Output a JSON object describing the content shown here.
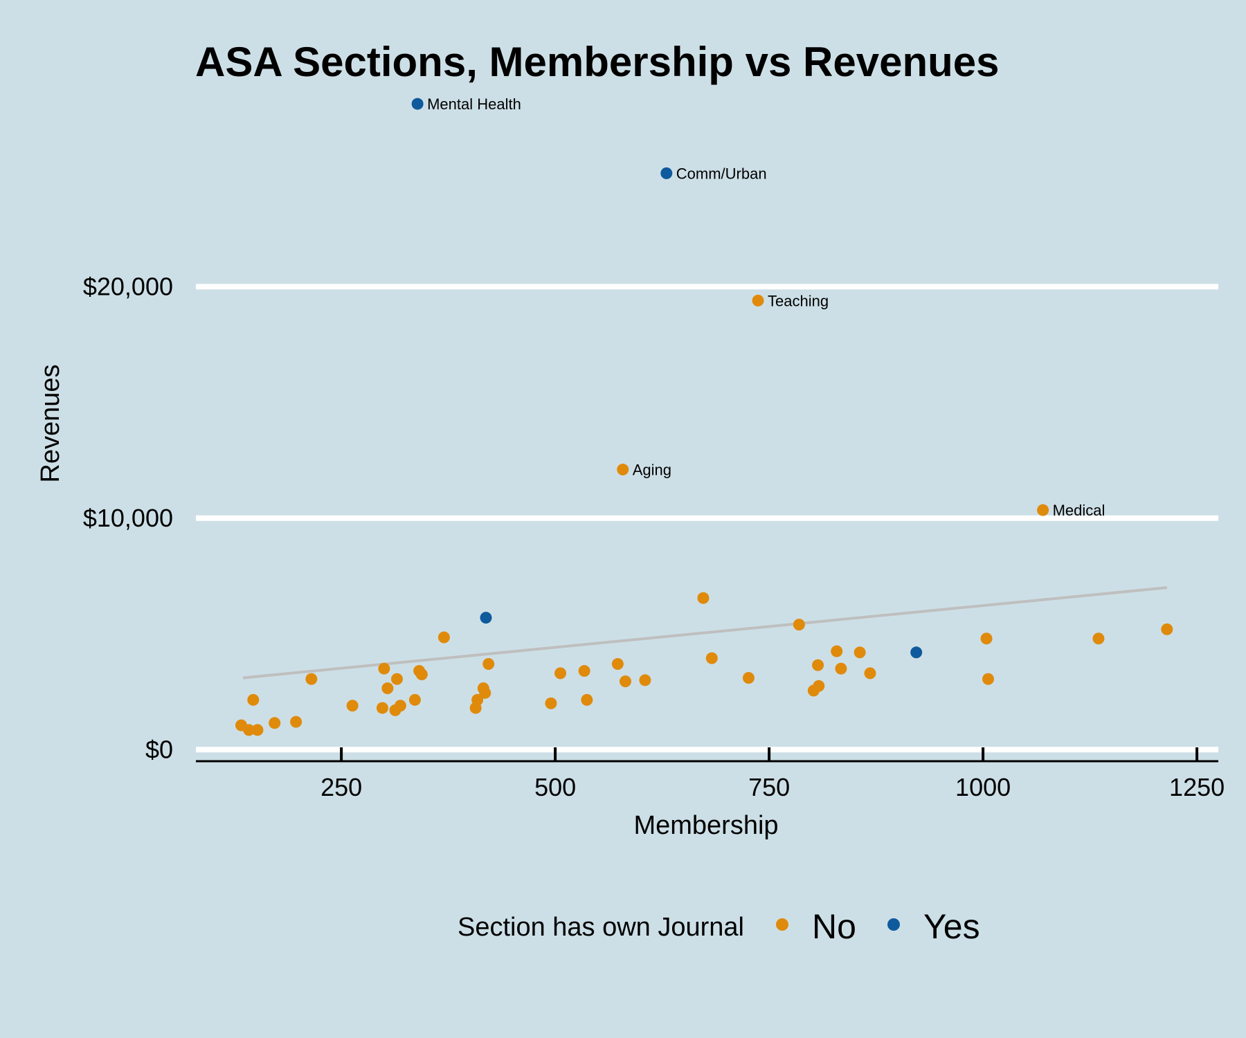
{
  "chart_data": {
    "type": "scatter",
    "title": "ASA Sections, Membership vs Revenues",
    "xlabel": "Membership",
    "ylabel": "Revenues",
    "xlim": [
      80,
      1275
    ],
    "ylim": [
      -500,
      28500
    ],
    "x_ticks": [
      250,
      500,
      750,
      1000,
      1250
    ],
    "x_tick_labels": [
      "250",
      "500",
      "750",
      "1000",
      "1250"
    ],
    "y_ticks": [
      0,
      10000,
      20000
    ],
    "y_tick_labels": [
      "$0",
      "$10,000",
      "$20,000"
    ],
    "grid": "horizontal",
    "legend": {
      "title": "Section has own Journal",
      "position": "bottom",
      "entries": [
        "No",
        "Yes"
      ]
    },
    "colors": {
      "No": "#e08a0b",
      "Yes": "#0e5a9c",
      "trend": "#bfbfbf",
      "background": "#cddfe6",
      "grid": "#ffffff"
    },
    "trend_line": {
      "x": [
        135,
        1215
      ],
      "y": [
        3100,
        7000
      ]
    },
    "series": [
      {
        "name": "No",
        "points": [
          {
            "x": 133,
            "y": 1050
          },
          {
            "x": 142,
            "y": 850
          },
          {
            "x": 147,
            "y": 2150
          },
          {
            "x": 152,
            "y": 850
          },
          {
            "x": 172,
            "y": 1150
          },
          {
            "x": 197,
            "y": 1200
          },
          {
            "x": 215,
            "y": 3050
          },
          {
            "x": 263,
            "y": 1900
          },
          {
            "x": 298,
            "y": 1800
          },
          {
            "x": 300,
            "y": 3500
          },
          {
            "x": 304,
            "y": 2650
          },
          {
            "x": 313,
            "y": 1700
          },
          {
            "x": 315,
            "y": 3050
          },
          {
            "x": 319,
            "y": 1900
          },
          {
            "x": 336,
            "y": 2150
          },
          {
            "x": 341,
            "y": 3400
          },
          {
            "x": 344,
            "y": 3250
          },
          {
            "x": 370,
            "y": 4850
          },
          {
            "x": 407,
            "y": 1800
          },
          {
            "x": 409,
            "y": 2150
          },
          {
            "x": 416,
            "y": 2650
          },
          {
            "x": 418,
            "y": 2450
          },
          {
            "x": 422,
            "y": 3700
          },
          {
            "x": 495,
            "y": 2000
          },
          {
            "x": 506,
            "y": 3300
          },
          {
            "x": 534,
            "y": 3400
          },
          {
            "x": 537,
            "y": 2150
          },
          {
            "x": 573,
            "y": 3700
          },
          {
            "x": 579,
            "y": 12100,
            "label": "Aging"
          },
          {
            "x": 582,
            "y": 2950
          },
          {
            "x": 605,
            "y": 3000
          },
          {
            "x": 673,
            "y": 6550
          },
          {
            "x": 683,
            "y": 3950
          },
          {
            "x": 726,
            "y": 3100
          },
          {
            "x": 737,
            "y": 19400,
            "label": "Teaching"
          },
          {
            "x": 785,
            "y": 5400
          },
          {
            "x": 802,
            "y": 2550
          },
          {
            "x": 807,
            "y": 3650
          },
          {
            "x": 808,
            "y": 2750
          },
          {
            "x": 829,
            "y": 4250
          },
          {
            "x": 834,
            "y": 3500
          },
          {
            "x": 856,
            "y": 4200
          },
          {
            "x": 868,
            "y": 3300
          },
          {
            "x": 1004,
            "y": 4800
          },
          {
            "x": 1006,
            "y": 3050
          },
          {
            "x": 1070,
            "y": 10350,
            "label": "Medical"
          },
          {
            "x": 1135,
            "y": 4800
          },
          {
            "x": 1215,
            "y": 5200
          }
        ]
      },
      {
        "name": "Yes",
        "points": [
          {
            "x": 339,
            "y": 27900,
            "label": "Mental Health"
          },
          {
            "x": 419,
            "y": 5700
          },
          {
            "x": 630,
            "y": 24900,
            "label": "Comm/Urban"
          },
          {
            "x": 922,
            "y": 4200
          }
        ]
      }
    ]
  }
}
